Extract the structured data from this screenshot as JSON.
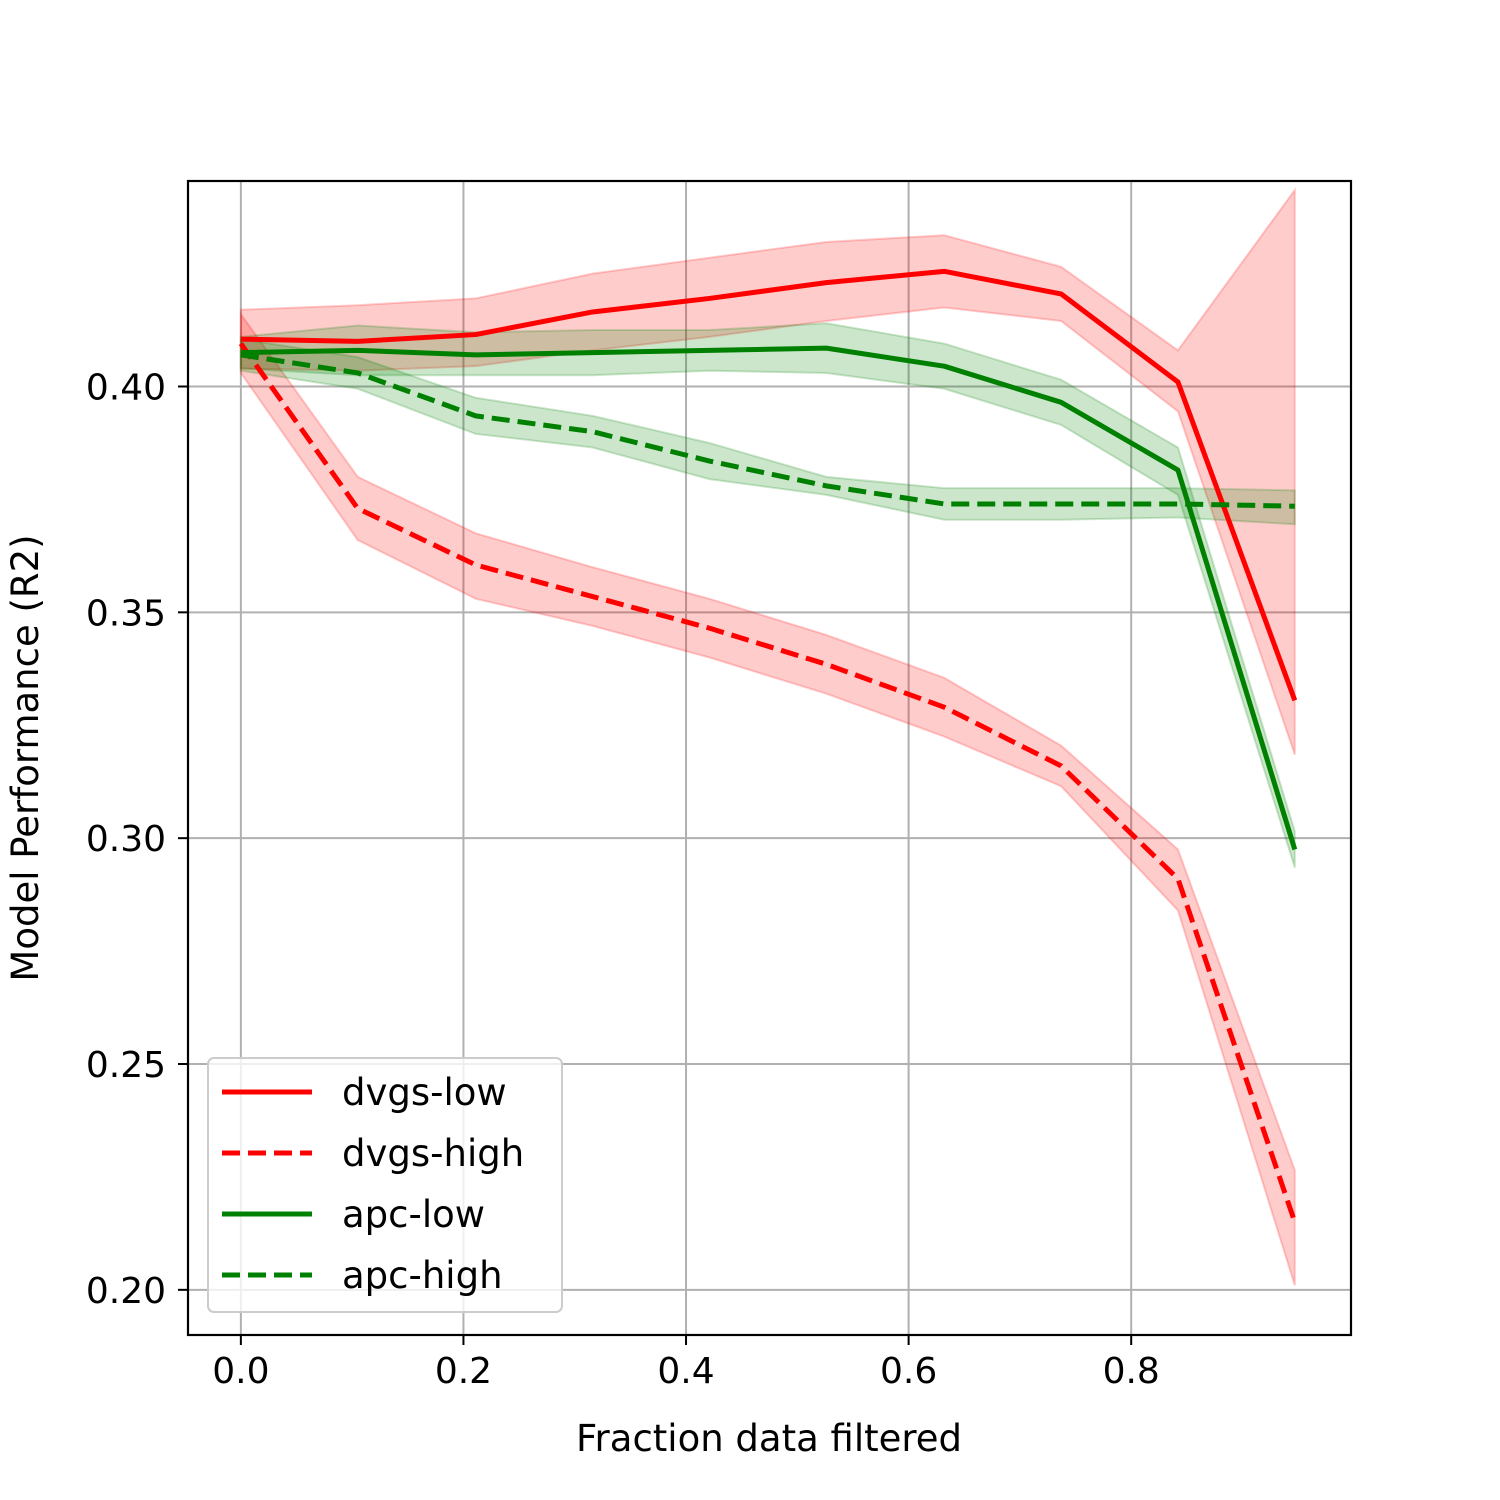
{
  "chart_data": {
    "type": "line",
    "title": "",
    "xlabel": "Fraction data filtered",
    "ylabel": "Model Performance (R2)",
    "xlim": [
      -0.0475,
      0.9975
    ],
    "ylim": [
      0.19,
      0.4455
    ],
    "xticks": [
      0.0,
      0.2,
      0.4,
      0.6,
      0.8
    ],
    "xtick_labels": [
      "0.0",
      "0.2",
      "0.4",
      "0.6",
      "0.8"
    ],
    "yticks": [
      0.2,
      0.25,
      0.3,
      0.35,
      0.4
    ],
    "ytick_labels": [
      "0.20",
      "0.25",
      "0.30",
      "0.35",
      "0.40"
    ],
    "grid": true,
    "legend_position": "lower-left",
    "x": [
      0.0,
      0.105,
      0.211,
      0.316,
      0.421,
      0.526,
      0.632,
      0.737,
      0.842,
      0.947
    ],
    "series": [
      {
        "name": "dvgs-low",
        "color": "#ff0000",
        "linestyle": "solid",
        "values": [
          0.4105,
          0.41,
          0.4115,
          0.4165,
          0.4195,
          0.423,
          0.4255,
          0.4205,
          0.401,
          0.3305
        ],
        "lower": [
          0.404,
          0.4035,
          0.4045,
          0.408,
          0.411,
          0.4145,
          0.4175,
          0.4145,
          0.3945,
          0.3185
        ],
        "upper": [
          0.417,
          0.418,
          0.4195,
          0.425,
          0.4285,
          0.432,
          0.4335,
          0.4265,
          0.408,
          0.4435
        ]
      },
      {
        "name": "dvgs-high",
        "color": "#ff0000",
        "linestyle": "dashed",
        "values": [
          0.4095,
          0.373,
          0.3605,
          0.3535,
          0.3465,
          0.3385,
          0.329,
          0.316,
          0.291,
          0.215
        ],
        "lower": [
          0.403,
          0.366,
          0.353,
          0.347,
          0.34,
          0.332,
          0.3225,
          0.3115,
          0.284,
          0.201
        ],
        "upper": [
          0.416,
          0.38,
          0.3675,
          0.36,
          0.353,
          0.345,
          0.3355,
          0.3205,
          0.2975,
          0.2265
        ]
      },
      {
        "name": "apc-low",
        "color": "#008000",
        "linestyle": "solid",
        "values": [
          0.4075,
          0.408,
          0.407,
          0.4075,
          0.408,
          0.4085,
          0.4045,
          0.3965,
          0.3815,
          0.2975
        ],
        "lower": [
          0.404,
          0.4025,
          0.4025,
          0.4025,
          0.4035,
          0.403,
          0.3995,
          0.3915,
          0.376,
          0.2935
        ],
        "upper": [
          0.411,
          0.4135,
          0.412,
          0.4125,
          0.4125,
          0.414,
          0.4095,
          0.4015,
          0.3865,
          0.3015
        ]
      },
      {
        "name": "apc-high",
        "color": "#008000",
        "linestyle": "dashed",
        "values": [
          0.407,
          0.403,
          0.3935,
          0.39,
          0.3835,
          0.378,
          0.374,
          0.374,
          0.374,
          0.3735
        ],
        "lower": [
          0.4035,
          0.3995,
          0.3895,
          0.3865,
          0.3795,
          0.376,
          0.3705,
          0.3705,
          0.371,
          0.3695
        ],
        "upper": [
          0.4105,
          0.4065,
          0.3975,
          0.3935,
          0.3875,
          0.38,
          0.3775,
          0.3775,
          0.3775,
          0.377
        ]
      }
    ]
  }
}
